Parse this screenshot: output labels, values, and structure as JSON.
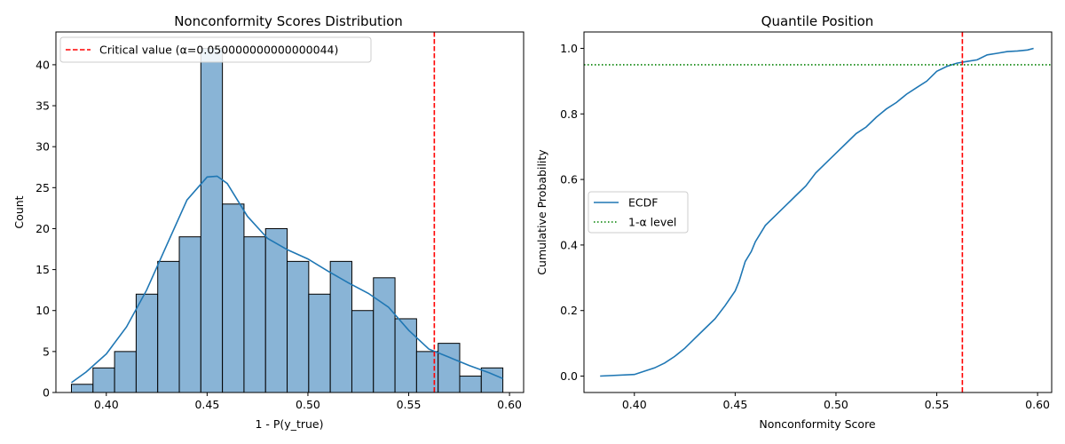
{
  "chart_data": [
    {
      "type": "bar",
      "subtype": "histogram-with-kde",
      "title": "Nonconformity Scores Distribution",
      "xlabel": "1 - P(y_true)",
      "ylabel": "Count",
      "xlim": [
        0.375,
        0.607
      ],
      "ylim": [
        0,
        44
      ],
      "xticks": [
        0.4,
        0.45,
        0.5,
        0.55,
        0.6
      ],
      "xtick_labels": [
        "0.40",
        "0.45",
        "0.50",
        "0.55",
        "0.60"
      ],
      "yticks": [
        0,
        5,
        10,
        15,
        20,
        25,
        30,
        35,
        40
      ],
      "ytick_labels": [
        "0",
        "5",
        "10",
        "15",
        "20",
        "25",
        "30",
        "35",
        "40"
      ],
      "bin_edges": [
        0.3827,
        0.3934,
        0.4041,
        0.4148,
        0.4255,
        0.4362,
        0.4469,
        0.4576,
        0.4683,
        0.479,
        0.4897,
        0.5004,
        0.5111,
        0.5218,
        0.5325,
        0.5432,
        0.5539,
        0.5646,
        0.5753,
        0.586,
        0.5967
      ],
      "counts": [
        1,
        3,
        5,
        12,
        16,
        19,
        42,
        23,
        19,
        20,
        16,
        12,
        16,
        10,
        14,
        9,
        5,
        6,
        2,
        3
      ],
      "bar_color": "#89b4d6",
      "kde": {
        "x": [
          0.3827,
          0.39,
          0.4,
          0.41,
          0.42,
          0.43,
          0.44,
          0.45,
          0.455,
          0.46,
          0.47,
          0.48,
          0.49,
          0.5,
          0.51,
          0.52,
          0.53,
          0.54,
          0.55,
          0.56,
          0.57,
          0.58,
          0.59,
          0.5967
        ],
        "y": [
          1.2,
          2.5,
          4.7,
          8.0,
          12.5,
          18.0,
          23.5,
          26.3,
          26.4,
          25.5,
          21.5,
          18.8,
          17.4,
          16.3,
          14.8,
          13.4,
          12.1,
          10.4,
          7.6,
          5.3,
          4.3,
          3.3,
          2.4,
          1.7
        ],
        "color": "#1f77b4"
      },
      "critical_value": 0.5627,
      "legend": {
        "position": "upper-left",
        "entries": [
          {
            "label": "Critical value (α=0.050000000000000044)",
            "color": "#ff0000",
            "style": "dashed"
          }
        ]
      }
    },
    {
      "type": "line",
      "title": "Quantile Position",
      "xlabel": "Nonconformity Score",
      "ylabel": "Cumulative Probability",
      "xlim": [
        0.375,
        0.607
      ],
      "ylim": [
        -0.05,
        1.05
      ],
      "xticks": [
        0.4,
        0.45,
        0.5,
        0.55,
        0.6
      ],
      "xtick_labels": [
        "0.40",
        "0.45",
        "0.50",
        "0.55",
        "0.60"
      ],
      "yticks": [
        0.0,
        0.2,
        0.4,
        0.6,
        0.8,
        1.0
      ],
      "ytick_labels": [
        "0.0",
        "0.2",
        "0.4",
        "0.6",
        "0.8",
        "1.0"
      ],
      "series": [
        {
          "name": "ECDF",
          "color": "#1f77b4",
          "x": [
            0.383,
            0.4,
            0.405,
            0.41,
            0.415,
            0.42,
            0.425,
            0.43,
            0.435,
            0.44,
            0.445,
            0.45,
            0.452,
            0.455,
            0.458,
            0.46,
            0.465,
            0.47,
            0.475,
            0.48,
            0.485,
            0.49,
            0.495,
            0.5,
            0.505,
            0.51,
            0.515,
            0.52,
            0.525,
            0.53,
            0.535,
            0.54,
            0.545,
            0.55,
            0.555,
            0.56,
            0.565,
            0.57,
            0.575,
            0.58,
            0.585,
            0.59,
            0.595,
            0.598
          ],
          "y": [
            0.0,
            0.005,
            0.015,
            0.025,
            0.04,
            0.06,
            0.085,
            0.115,
            0.145,
            0.175,
            0.215,
            0.26,
            0.29,
            0.35,
            0.38,
            0.41,
            0.46,
            0.49,
            0.52,
            0.55,
            0.58,
            0.62,
            0.65,
            0.68,
            0.71,
            0.74,
            0.76,
            0.79,
            0.815,
            0.835,
            0.86,
            0.88,
            0.9,
            0.93,
            0.945,
            0.955,
            0.96,
            0.965,
            0.98,
            0.985,
            0.99,
            0.992,
            0.995,
            1.0
          ]
        }
      ],
      "reference_lines": {
        "critical_value": {
          "x": 0.5627,
          "color": "#ff0000",
          "style": "dashed"
        },
        "level": {
          "name": "1-α level",
          "y": 0.95,
          "color": "#008000",
          "style": "dotted"
        }
      },
      "legend": {
        "position": "center-left",
        "entries": [
          {
            "label": "ECDF",
            "color": "#1f77b4",
            "style": "solid"
          },
          {
            "label": "1-α level",
            "color": "#008000",
            "style": "dotted"
          }
        ]
      }
    }
  ]
}
